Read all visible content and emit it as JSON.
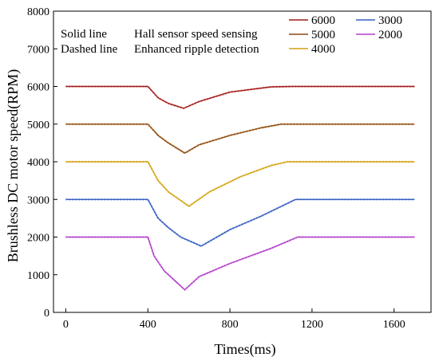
{
  "chart_data": {
    "type": "line",
    "title": "",
    "xlabel": "Times(ms)",
    "ylabel": "Brushless DC motor speed(RPM)",
    "xlim": [
      -60,
      1780
    ],
    "ylim": [
      0,
      8000
    ],
    "x_ticks": [
      0,
      400,
      800,
      1200,
      1600
    ],
    "y_ticks": [
      0,
      1000,
      2000,
      3000,
      4000,
      5000,
      6000,
      7000,
      8000
    ],
    "grid": false,
    "legend_placement": "top-right",
    "notes": [
      {
        "style": "Solid line",
        "meaning": "Hall sensor speed sensing"
      },
      {
        "style": "Dashed line",
        "meaning": "Enhanced ripple detection"
      }
    ],
    "series": [
      {
        "name": "6000",
        "color": "#9e1b1b",
        "dashed_color": "#f0a0a0",
        "x": [
          0,
          400,
          450,
          500,
          575,
          650,
          800,
          1000,
          1100,
          1400,
          1700
        ],
        "y": [
          6000,
          6000,
          5700,
          5550,
          5420,
          5600,
          5850,
          5990,
          6000,
          6000,
          6000
        ]
      },
      {
        "name": "5000",
        "color": "#8a4a16",
        "dashed_color": "#e0b070",
        "x": [
          0,
          400,
          450,
          500,
          580,
          650,
          800,
          950,
          1050,
          1400,
          1700
        ],
        "y": [
          5000,
          5000,
          4700,
          4500,
          4230,
          4450,
          4700,
          4900,
          5000,
          5000,
          5000
        ]
      },
      {
        "name": "4000",
        "color": "#d4a017",
        "dashed_color": "#f2dc80",
        "x": [
          0,
          400,
          450,
          500,
          600,
          700,
          850,
          1000,
          1080,
          1400,
          1700
        ],
        "y": [
          4000,
          4000,
          3500,
          3200,
          2820,
          3200,
          3600,
          3900,
          4000,
          4000,
          4000
        ]
      },
      {
        "name": "3000",
        "color": "#3a5fbf",
        "dashed_color": "#a0b8f0",
        "x": [
          0,
          400,
          450,
          500,
          560,
          660,
          800,
          950,
          1120,
          1400,
          1700
        ],
        "y": [
          3000,
          3000,
          2500,
          2250,
          2000,
          1760,
          2200,
          2550,
          3000,
          3000,
          3000
        ]
      },
      {
        "name": "2000",
        "color": "#b040c8",
        "dashed_color": "#e8a8f0",
        "x": [
          0,
          400,
          430,
          480,
          530,
          580,
          650,
          800,
          1000,
          1130,
          1400,
          1700
        ],
        "y": [
          2000,
          2000,
          1500,
          1100,
          850,
          600,
          950,
          1300,
          1700,
          2000,
          2000,
          2000
        ]
      }
    ]
  }
}
